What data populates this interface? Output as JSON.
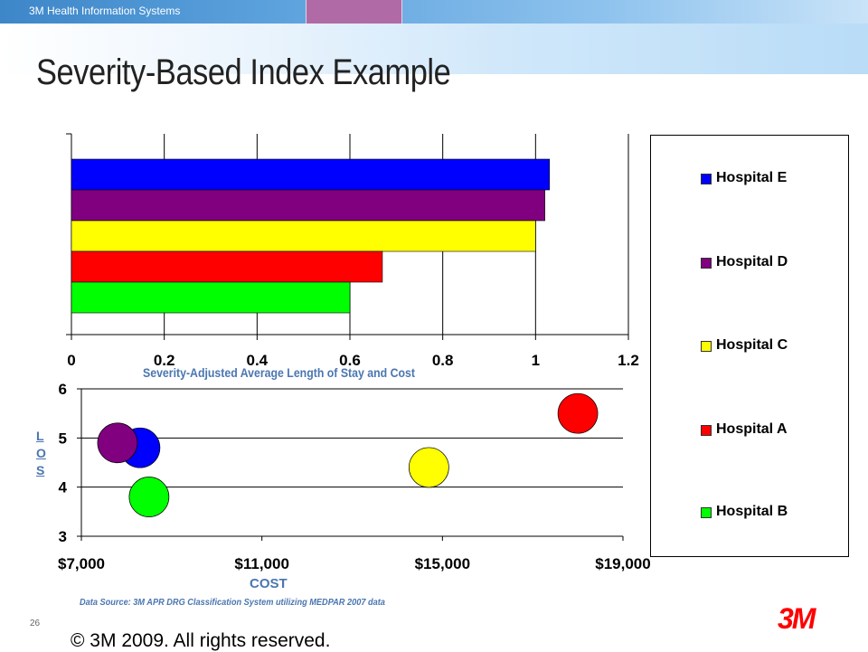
{
  "header": {
    "brand": "3M Health Information Systems",
    "title": "Severity-Based Index Example"
  },
  "legend": {
    "items": [
      {
        "label": "Hospital E",
        "color": "#0000ff"
      },
      {
        "label": "Hospital D",
        "color": "#800080"
      },
      {
        "label": "Hospital C",
        "color": "#ffff00"
      },
      {
        "label": "Hospital A",
        "color": "#ff0000"
      },
      {
        "label": "Hospital B",
        "color": "#00ff00"
      }
    ]
  },
  "chart_data": [
    {
      "type": "bar",
      "orientation": "horizontal",
      "categories": [
        "Hospital E",
        "Hospital D",
        "Hospital C",
        "Hospital A",
        "Hospital B"
      ],
      "values": [
        1.03,
        1.02,
        1.0,
        0.67,
        0.6
      ],
      "colors": [
        "#0000ff",
        "#800080",
        "#ffff00",
        "#ff0000",
        "#00ff00"
      ],
      "xlim": [
        0,
        1.2
      ],
      "xticks": [
        "0",
        "0.2",
        "0.4",
        "0.6",
        "0.8",
        "1",
        "1.2"
      ],
      "grid": true
    },
    {
      "type": "scatter",
      "bubble": true,
      "title": "Severity-Adjusted Average Length of Stay and Cost",
      "xlabel": "COST",
      "ylabel": "LOS",
      "xlim": [
        7000,
        19000
      ],
      "ylim": [
        3,
        6
      ],
      "xticks": [
        "$7,000",
        "$11,000",
        "$15,000",
        "$19,000"
      ],
      "yticks": [
        "3",
        "4",
        "5",
        "6"
      ],
      "series": [
        {
          "name": "Hospital E",
          "x": 8300,
          "y": 4.8,
          "color": "#0000ff"
        },
        {
          "name": "Hospital D",
          "x": 7800,
          "y": 4.9,
          "color": "#800080"
        },
        {
          "name": "Hospital C",
          "x": 14700,
          "y": 4.4,
          "color": "#ffff00"
        },
        {
          "name": "Hospital A",
          "x": 18000,
          "y": 5.5,
          "color": "#ff0000"
        },
        {
          "name": "Hospital B",
          "x": 8500,
          "y": 3.8,
          "color": "#00ff00"
        }
      ],
      "grid": true
    }
  ],
  "footer": {
    "source": "Data Source:  3M APR DRG Classification System utilizing MEDPAR 2007 data",
    "page_number": "26",
    "copyright": "© 3M 2009.  All rights reserved.",
    "logo": "3M"
  }
}
